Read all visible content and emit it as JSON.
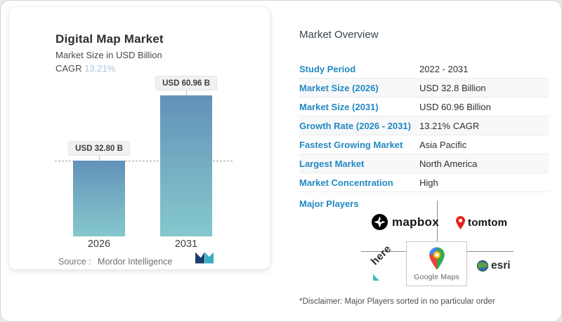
{
  "chart": {
    "title": "Digital Map Market",
    "subtitle": "Market Size in USD Billion",
    "cagr_label": "CAGR",
    "cagr_value": "13.21%",
    "source_label": "Source :",
    "source_value": "Mordor Intelligence",
    "bars": [
      {
        "year": "2026",
        "label": "USD 32.80 B"
      },
      {
        "year": "2031",
        "label": "USD 60.96 B"
      }
    ]
  },
  "chart_data": {
    "type": "bar",
    "title": "Digital Map Market",
    "subtitle": "Market Size in USD Billion",
    "categories": [
      "2026",
      "2031"
    ],
    "values": [
      32.8,
      60.96
    ],
    "bar_labels": [
      "USD 32.80 B",
      "USD 60.96 B"
    ],
    "cagr": "13.21%",
    "ylim": [
      0,
      65
    ],
    "reference_line": 32.8,
    "grid": false,
    "legend": false,
    "source": "Mordor Intelligence",
    "bar_gradient": [
      "#6191b9",
      "#85c8cd"
    ]
  },
  "overview": {
    "title": "Market Overview",
    "rows": [
      {
        "label": "Study Period",
        "value": "2022 - 2031"
      },
      {
        "label": "Market Size (2026)",
        "value": "USD 32.8 Billion"
      },
      {
        "label": "Market Size (2031)",
        "value": "USD 60.96 Billion"
      },
      {
        "label": "Growth Rate (2026 - 2031)",
        "value": "13.21% CAGR"
      },
      {
        "label": "Fastest Growing Market",
        "value": "Asia Pacific"
      },
      {
        "label": "Largest Market",
        "value": "North America"
      },
      {
        "label": "Market Concentration",
        "value": "High"
      }
    ],
    "major_players_label": "Major Players",
    "players": [
      {
        "name": "mapbox"
      },
      {
        "name": "tomtom"
      },
      {
        "name": "here"
      },
      {
        "name": "Google Maps"
      },
      {
        "name": "esri"
      }
    ],
    "disclaimer": "*Disclaimer: Major Players sorted in no particular order"
  },
  "colors": {
    "accent_blue": "#2289c3",
    "cagr_light_blue": "#a9c4da",
    "bar_top": "#6191b9",
    "bar_bottom": "#85c8cd",
    "tomtom_red": "#e2231a",
    "here_teal": "#3fbdb4"
  }
}
